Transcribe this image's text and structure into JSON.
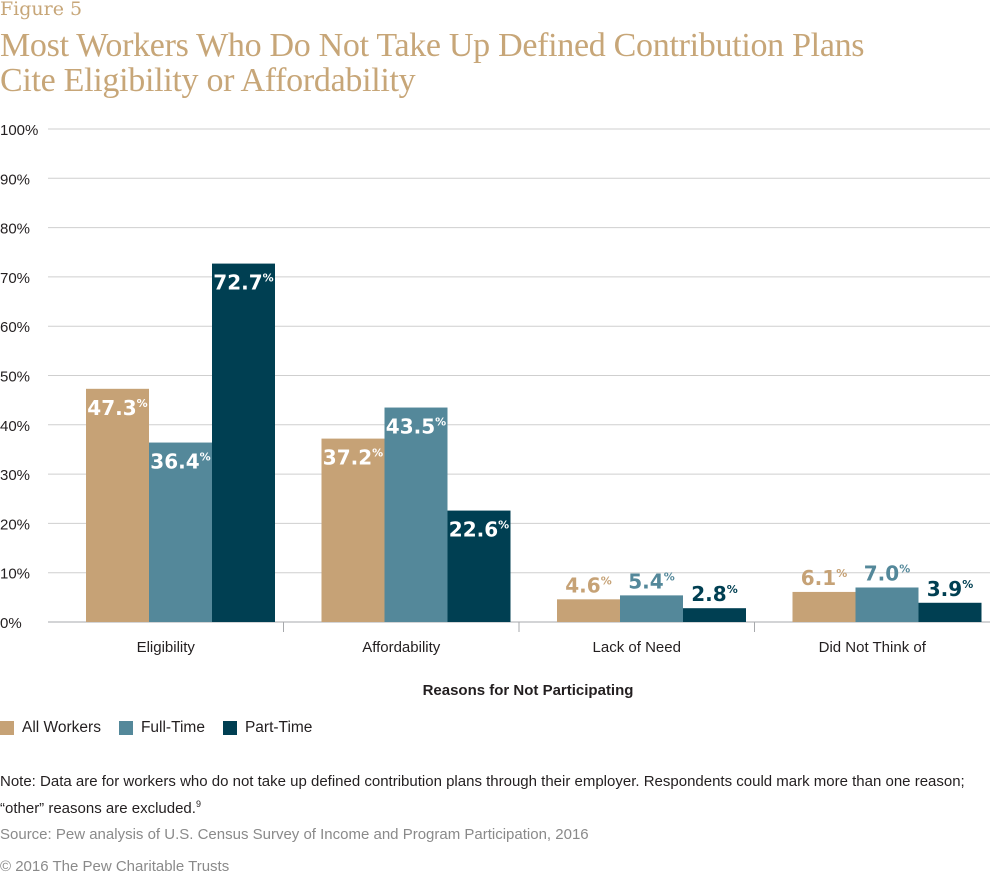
{
  "figure_label": "Figure 5",
  "title": "Most Workers Who Do Not Take Up Defined Contribution Plans Cite Eligibility or Affordability",
  "note": "Note: Data are for workers who do not take up defined contribution plans through their employer. Respondents could mark more than one reason; “other” reasons are excluded.",
  "note_ref": "9",
  "source": "Source: Pew analysis of U.S. Census Survey of Income and Program Participation, 2016",
  "copyright": "© 2016 The Pew Charitable Trusts",
  "chart_data": {
    "type": "bar",
    "title": "Most Workers Who Do Not Take Up Defined Contribution Plans Cite Eligibility or Affordability",
    "xlabel": "Reasons for Not Participating",
    "ylabel": "",
    "categories": [
      "Eligibility",
      "Affordability",
      "Lack of Need",
      "Did Not Think of"
    ],
    "series": [
      {
        "name": "All Workers",
        "values": [
          47.3,
          37.2,
          4.6,
          6.1
        ],
        "color": "#c6a276",
        "label_color": "#ffffff"
      },
      {
        "name": "Full-Time",
        "values": [
          36.4,
          43.5,
          5.4,
          7.0
        ],
        "color": "#54889a",
        "label_color": "#ffffff"
      },
      {
        "name": "Part-Time",
        "values": [
          72.7,
          22.6,
          2.8,
          3.9
        ],
        "color": "#003f52",
        "label_color": "#ffffff"
      }
    ],
    "value_labels": [
      [
        "47.3",
        "37.2",
        "4.6",
        "6.1"
      ],
      [
        "36.4",
        "43.5",
        "5.4",
        "7.0"
      ],
      [
        "72.7",
        "22.6",
        "2.8",
        "3.9"
      ]
    ],
    "label_unit": "%",
    "yticks": [
      "0%",
      "10%",
      "20%",
      "30%",
      "40%",
      "50%",
      "60%",
      "70%",
      "80%",
      "90%",
      "100%"
    ],
    "ylim": [
      0,
      100
    ],
    "grid": true,
    "legend": "bottom-left"
  }
}
